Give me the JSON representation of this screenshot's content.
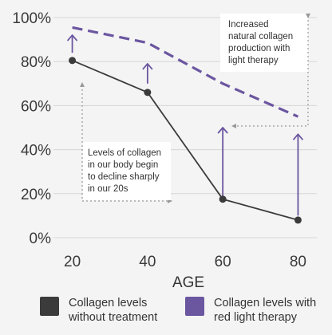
{
  "chart_data": {
    "type": "line",
    "x": [
      20,
      40,
      60,
      80
    ],
    "series": [
      {
        "name": "Collagen levels without treatment",
        "values": [
          80.5,
          66,
          17.5,
          8
        ],
        "color": "#3b3b3b",
        "style": "solid"
      },
      {
        "name": "Collagen levels with red light therapy",
        "values": [
          95.5,
          88.5,
          70,
          55
        ],
        "color": "#6b56a0",
        "style": "dashed"
      }
    ],
    "xlabel": "AGE",
    "ylabel": "",
    "xticks": [
      "20",
      "40",
      "60",
      "80"
    ],
    "yticks": [
      "0%",
      "20%",
      "40%",
      "60%",
      "80%",
      "100%"
    ],
    "ylim": [
      0,
      100
    ],
    "xlim": [
      15,
      85
    ],
    "grid": "horizontal",
    "legend": [
      {
        "line1": "Collagen levels",
        "line2": "without treatment",
        "color": "#3b3b3b"
      },
      {
        "line1": "Collagen levels with",
        "line2": "red light therapy",
        "color": "#6b56a0"
      }
    ],
    "annotations": {
      "increase": {
        "lines": [
          "Increased",
          "natural collagen",
          "production with",
          "light therapy"
        ]
      },
      "decline": {
        "lines": [
          "Levels of collagen",
          "in our body begin",
          "to decline sharply",
          "in our 20s"
        ]
      }
    },
    "improvement_arrows": [
      {
        "x": 20,
        "from": 84,
        "to": 92
      },
      {
        "x": 40,
        "from": 70,
        "to": 79
      },
      {
        "x": 60,
        "from": 19,
        "to": 50
      },
      {
        "x": 80,
        "from": 10,
        "to": 47
      }
    ],
    "accent_color": "#6b56a0"
  }
}
